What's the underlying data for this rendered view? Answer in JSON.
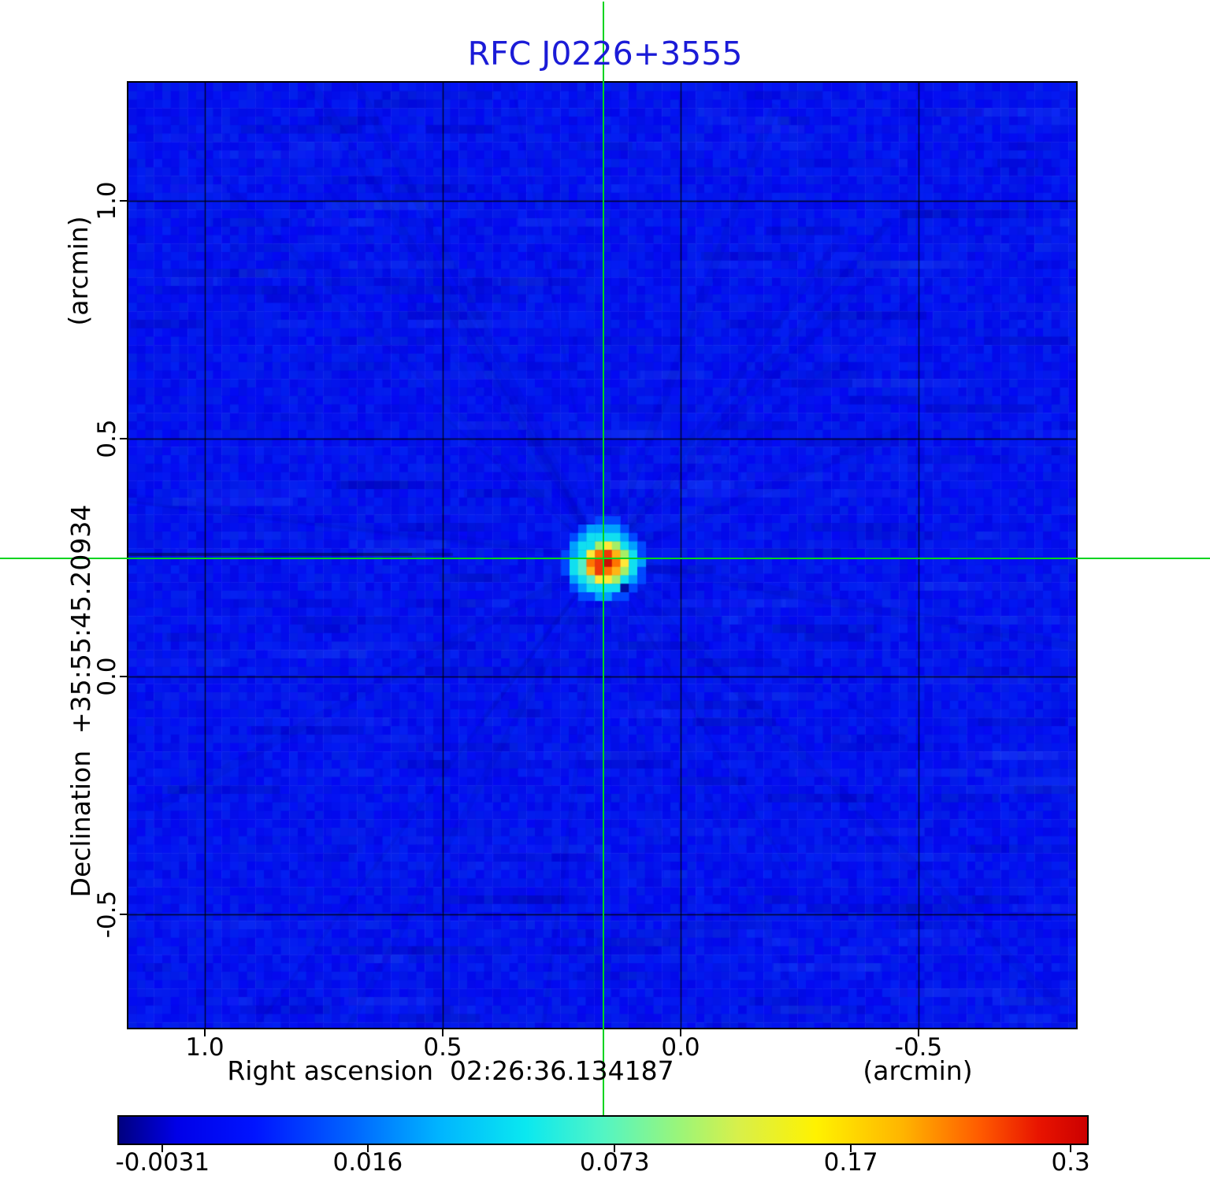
{
  "title": {
    "text": "RFC J0226+3555",
    "color": "#1b1bd7"
  },
  "axes": {
    "x": {
      "tick_labels": [
        "1.0",
        "0.5",
        "0.0",
        "-0.5"
      ],
      "label_main": "Right ascension  02:26:36.134187",
      "label_unit": "(arcmin)"
    },
    "y": {
      "tick_labels": [
        "1.0",
        "0.5",
        "0.0",
        "-0.5"
      ],
      "label_main": "Declination  +35:55:45.20934",
      "label_unit": "(arcmin)"
    }
  },
  "colorbar": {
    "tick_labels": [
      "-0.0031",
      "0.016",
      "0.073",
      "0.17",
      "0.3"
    ],
    "tick_positions": [
      0.045,
      0.257,
      0.512,
      0.756,
      0.983
    ],
    "gradient_stops": [
      [
        "#000080",
        0
      ],
      [
        "#0000e8",
        0.06
      ],
      [
        "#0014ff",
        0.14
      ],
      [
        "#0064ff",
        0.24
      ],
      [
        "#00b4ff",
        0.33
      ],
      [
        "#0ae8f0",
        0.42
      ],
      [
        "#52f5c4",
        0.5
      ],
      [
        "#9cf578",
        0.58
      ],
      [
        "#d8f04a",
        0.64
      ],
      [
        "#fff200",
        0.72
      ],
      [
        "#ffb400",
        0.81
      ],
      [
        "#ff5a00",
        0.89
      ],
      [
        "#e81400",
        0.95
      ],
      [
        "#cc0000",
        1
      ]
    ]
  },
  "chart_data": {
    "type": "heatmap",
    "title": "RFC J0226+3555",
    "xlabel": "Right ascension  02:26:36.134187  (arcmin)",
    "ylabel": "Declination  +35:55:45.20934  (arcmin)",
    "x_ticks_arcmin": [
      1.0,
      0.5,
      0.0,
      -0.5
    ],
    "y_ticks_arcmin": [
      1.0,
      0.5,
      0.0,
      -0.5
    ],
    "x_range_arcmin": [
      1.16,
      -0.83
    ],
    "y_range_arcmin": [
      -0.73,
      1.25
    ],
    "grid": "on",
    "colormap": "jet",
    "intensity_range": [
      -0.0031,
      0.3
    ],
    "colorbar_tick_values": [
      -0.0031,
      0.016,
      0.073,
      0.17,
      0.3
    ],
    "source": {
      "ra_offset_arcmin": 0.16,
      "dec_offset_arcmin": 0.25,
      "peak_value": 0.3
    },
    "crosshair": {
      "color": "#00d41e",
      "ra_offset_arcmin": 0.16,
      "dec_offset_arcmin": 0.25
    },
    "background": {
      "base_color": "#0214ec",
      "noise_seed": 20934
    },
    "blob": {
      "palette": {
        "-1": "#000c9e",
        "1": "#0048ff",
        "2": "#00a0ff",
        "3": "#10dff0",
        "4": "#55eec6",
        "5": "#a5ee66",
        "6": "#ffe838",
        "7": "#ffb414",
        "8": "#ff7300",
        "9": "#ef3807",
        "10": "#c81004"
      },
      "grid": [
        [
          0,
          0,
          0,
          0,
          1,
          1,
          1,
          0,
          0,
          0,
          0
        ],
        [
          0,
          0,
          1,
          2,
          2,
          2,
          2,
          1,
          0,
          0,
          0
        ],
        [
          0,
          1,
          2,
          3,
          3,
          3,
          3,
          2,
          1,
          0,
          0
        ],
        [
          0,
          2,
          3,
          3,
          5,
          6,
          5,
          3,
          2,
          1,
          0
        ],
        [
          1,
          2,
          3,
          6,
          8,
          9,
          7,
          5,
          3,
          1,
          0
        ],
        [
          1,
          3,
          4,
          8,
          9,
          10,
          8,
          6,
          3,
          2,
          0
        ],
        [
          1,
          3,
          4,
          7,
          9,
          8,
          7,
          5,
          3,
          1,
          0
        ],
        [
          0,
          2,
          3,
          4,
          6,
          6,
          5,
          3,
          2,
          1,
          0
        ],
        [
          0,
          1,
          2,
          3,
          3,
          3,
          3,
          -1,
          1,
          0,
          0
        ],
        [
          0,
          0,
          1,
          1,
          2,
          2,
          1,
          1,
          0,
          0,
          0
        ]
      ]
    }
  }
}
